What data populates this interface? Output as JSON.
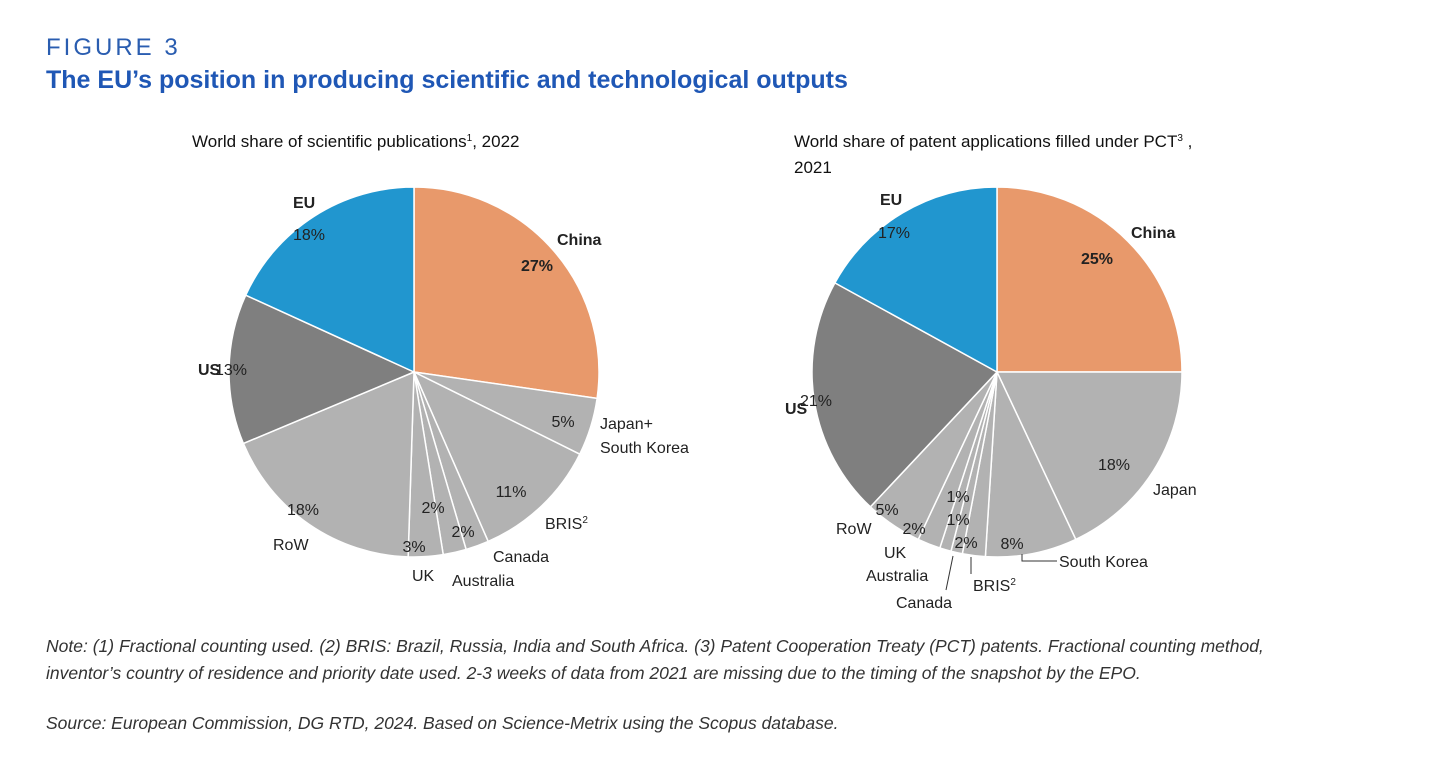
{
  "figure_label": "FIGURE 3",
  "figure_title": "The EU’s position in producing scientific and technological outputs",
  "note_line1": "Note: (1) Fractional counting used. (2) BRIS: Brazil, Russia, India and South Africa. (3) Patent Cooperation Treaty (PCT) patents. Fractional counting method,",
  "note_line2": "inventor’s country of residence and priority date used. 2-3 weeks of data from 2021 are missing due to the timing of the snapshot by the EPO.",
  "source": "Source: European Commission, DG RTD, 2024. Based on Science-Metrix using the Scopus database.",
  "colors": {
    "China": "#E8996B",
    "EU": "#2196CF",
    "US": "#7F7F7F",
    "Other": "#B2B2B2"
  },
  "chart_data": [
    {
      "type": "pie",
      "title": "World share of scientific publications",
      "title_sup": "1",
      "title_suffix": ", 2022",
      "start": "12 o'clock, clockwise",
      "slices": [
        {
          "label": "China",
          "value": 27,
          "pct": "27%"
        },
        {
          "label": "Japan+",
          "label2": "South Korea",
          "value": 5,
          "pct": "5%"
        },
        {
          "label": "BRIS",
          "sup": "2",
          "value": 11,
          "pct": "11%"
        },
        {
          "label": "Canada",
          "value": 2,
          "pct": "2%"
        },
        {
          "label": "Australia",
          "value": 2,
          "pct": "2%"
        },
        {
          "label": "UK",
          "value": 3,
          "pct": "3%"
        },
        {
          "label": "RoW",
          "value": 18,
          "pct": "18%"
        },
        {
          "label": "US",
          "value": 13,
          "pct": "13%"
        },
        {
          "label": "EU",
          "value": 18,
          "pct": "18%"
        }
      ]
    },
    {
      "type": "pie",
      "title": "World share of patent applications filled under PCT",
      "title_sup": "3",
      "title_suffix": " ,",
      "title_line2": "2021",
      "start": "12 o'clock, clockwise",
      "slices": [
        {
          "label": "China",
          "value": 25,
          "pct": "25%"
        },
        {
          "label": "Japan",
          "value": 18,
          "pct": "18%"
        },
        {
          "label": "South Korea",
          "value": 8,
          "pct": "8%"
        },
        {
          "label": "BRIS",
          "sup": "2",
          "value": 2,
          "pct": "2%"
        },
        {
          "label": "Canada",
          "value": 1,
          "pct": "1%"
        },
        {
          "label": "Australia",
          "value": 1,
          "pct": "1%"
        },
        {
          "label": "UK",
          "value": 2,
          "pct": "2%"
        },
        {
          "label": "RoW",
          "value": 5,
          "pct": "5%"
        },
        {
          "label": "US",
          "value": 21,
          "pct": "21%"
        },
        {
          "label": "EU",
          "value": 17,
          "pct": "17%"
        }
      ]
    }
  ]
}
